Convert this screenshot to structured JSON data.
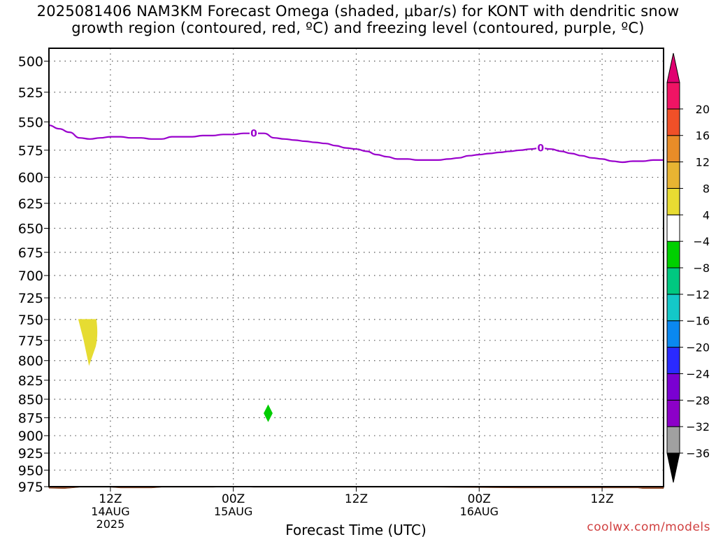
{
  "chart_data": {
    "type": "heatmap",
    "title_line1": "2025081406 NAM3KM Forecast Omega (shaded, μbar/s) for KONT with dendritic snow",
    "title_line2": "growth region (contoured, red, ºC) and freezing level (contoured, purple, ºC)",
    "xlabel": "Forecast Time (UTC)",
    "ylabel": "",
    "y_scale": "log-pressure, inverted",
    "ylim": [
      975,
      490
    ],
    "x_range_hours": [
      0,
      60
    ],
    "y_ticks": [
      500,
      525,
      550,
      575,
      600,
      625,
      650,
      675,
      700,
      725,
      750,
      775,
      800,
      825,
      850,
      875,
      900,
      925,
      950,
      975
    ],
    "x_ticks": [
      {
        "hour": 6,
        "line1": "12Z",
        "line2": "14AUG",
        "line3": "2025"
      },
      {
        "hour": 18,
        "line1": "00Z",
        "line2": "15AUG",
        "line3": ""
      },
      {
        "hour": 30,
        "line1": "12Z",
        "line2": "",
        "line3": ""
      },
      {
        "hour": 42,
        "line1": "00Z",
        "line2": "16AUG",
        "line3": ""
      },
      {
        "hour": 54,
        "line1": "12Z",
        "line2": "",
        "line3": ""
      }
    ],
    "grid": true,
    "freezing_level": {
      "label": "0",
      "color": "#9900cc",
      "label_hours": [
        20,
        48
      ],
      "x_hours": [
        0,
        1,
        2,
        3,
        4,
        5,
        6,
        7,
        8,
        9,
        10,
        11,
        12,
        13,
        14,
        15,
        16,
        17,
        18,
        19,
        20,
        21,
        22,
        23,
        24,
        25,
        26,
        27,
        28,
        29,
        30,
        31,
        32,
        33,
        34,
        35,
        36,
        37,
        38,
        39,
        40,
        41,
        42,
        43,
        44,
        45,
        46,
        47,
        48,
        49,
        50,
        51,
        52,
        53,
        54,
        55,
        56,
        57,
        58,
        59,
        60
      ],
      "pressure_hpa": [
        553,
        556,
        559,
        564,
        565,
        564,
        563,
        563,
        564,
        564,
        565,
        565,
        563,
        563,
        563,
        562,
        562,
        561,
        561,
        560,
        560,
        560,
        564,
        565,
        566,
        567,
        568,
        569,
        571,
        573,
        574,
        576,
        579,
        581,
        583,
        583,
        584,
        584,
        584,
        583,
        582,
        580,
        579,
        578,
        577,
        576,
        575,
        574,
        573,
        574,
        576,
        578,
        580,
        582,
        583,
        585,
        586,
        585,
        585,
        584,
        584
      ]
    },
    "omega_features": [
      {
        "name": "updraft-patch",
        "value_range": "4 to 8",
        "color": "#e6dc32",
        "x_hours": [
          2.9,
          4.6
        ],
        "pressure_hpa": [
          750,
          805
        ]
      },
      {
        "name": "downdraft-patch",
        "value_range": "-4 to -8",
        "color": "#00cc00",
        "x_hours": [
          21.0,
          21.8
        ],
        "pressure_hpa": [
          858,
          880
        ]
      }
    ],
    "terrain": {
      "color": "#a0522d",
      "x_hours": [
        0,
        1.5,
        3,
        6,
        7,
        8,
        10,
        11,
        12,
        16,
        18,
        20,
        22,
        38,
        46,
        57.5,
        58,
        60
      ],
      "surface_hpa": [
        977.5,
        978.0,
        976.0,
        976.0,
        977.0,
        977.0,
        977.0,
        976.0,
        976.0,
        976.0,
        975.0,
        976.0,
        976.0,
        976.0,
        977.0,
        977.0,
        978.0,
        978.0
      ]
    },
    "colorbar": {
      "levels": [
        -36,
        -32,
        -28,
        -24,
        -20,
        -16,
        -12,
        -8,
        -4,
        4,
        8,
        12,
        16,
        20
      ],
      "colors": [
        "#000000",
        "#a0a0a0",
        "#8c00c8",
        "#7a00d2",
        "#2a2aff",
        "#0a88f0",
        "#14c8c8",
        "#00c880",
        "#00d000",
        "#ffffff",
        "#e8dc32",
        "#e8b432",
        "#e88c28",
        "#f05028",
        "#f01464",
        "#e00070"
      ]
    },
    "watermark": "coolwx.com/models"
  }
}
